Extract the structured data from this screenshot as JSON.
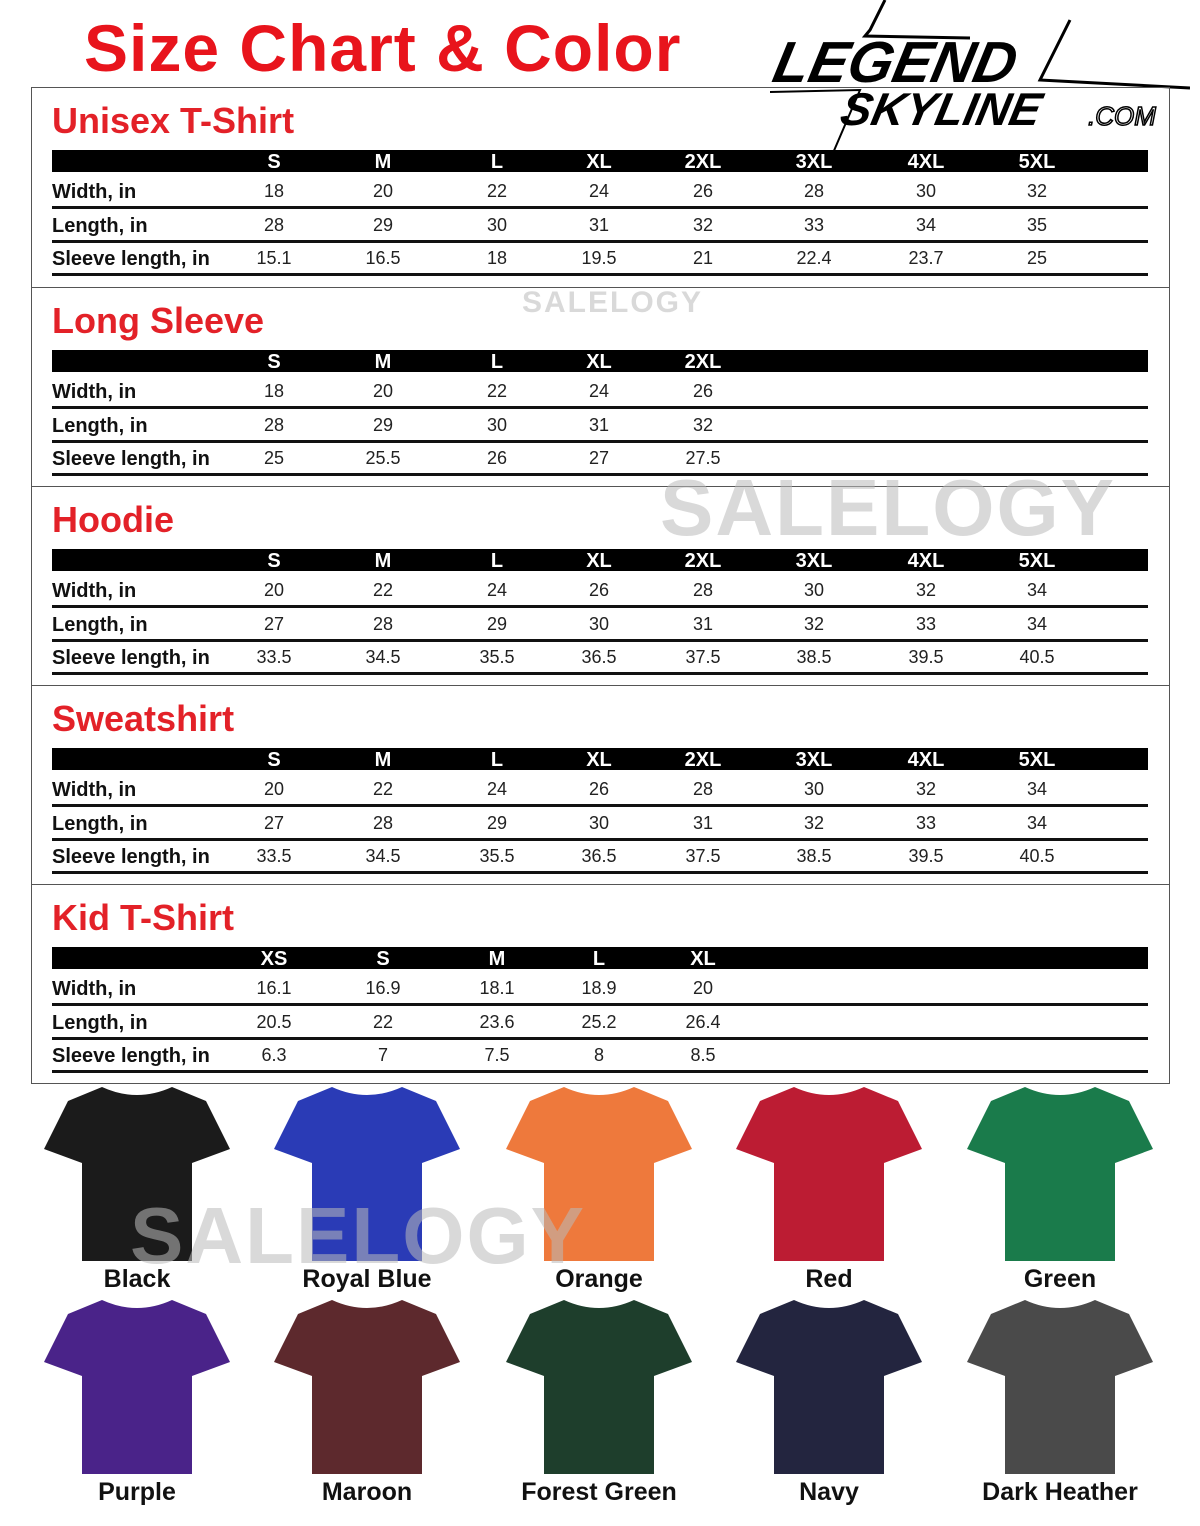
{
  "title": "Size Chart & Color",
  "logo": {
    "line1": "LEGEND",
    "line2": "SKYLINE",
    "suffix": ".COM"
  },
  "watermark": "SALELOGY",
  "row_labels": [
    "Width, in",
    "Length, in",
    "Sleeve length, in"
  ],
  "tables": [
    {
      "title": "Unisex T-Shirt",
      "sizes": [
        "S",
        "M",
        "L",
        "XL",
        "2XL",
        "3XL",
        "4XL",
        "5XL"
      ],
      "rows": [
        [
          "18",
          "20",
          "22",
          "24",
          "26",
          "28",
          "30",
          "32"
        ],
        [
          "28",
          "29",
          "30",
          "31",
          "32",
          "33",
          "34",
          "35"
        ],
        [
          "15.1",
          "16.5",
          "18",
          "19.5",
          "21",
          "22.4",
          "23.7",
          "25"
        ]
      ]
    },
    {
      "title": "Long Sleeve",
      "sizes": [
        "S",
        "M",
        "L",
        "XL",
        "2XL"
      ],
      "rows": [
        [
          "18",
          "20",
          "22",
          "24",
          "26"
        ],
        [
          "28",
          "29",
          "30",
          "31",
          "32"
        ],
        [
          "25",
          "25.5",
          "26",
          "27",
          "27.5"
        ]
      ]
    },
    {
      "title": "Hoodie",
      "sizes": [
        "S",
        "M",
        "L",
        "XL",
        "2XL",
        "3XL",
        "4XL",
        "5XL"
      ],
      "rows": [
        [
          "20",
          "22",
          "24",
          "26",
          "28",
          "30",
          "32",
          "34"
        ],
        [
          "27",
          "28",
          "29",
          "30",
          "31",
          "32",
          "33",
          "34"
        ],
        [
          "33.5",
          "34.5",
          "35.5",
          "36.5",
          "37.5",
          "38.5",
          "39.5",
          "40.5"
        ]
      ]
    },
    {
      "title": "Sweatshirt",
      "sizes": [
        "S",
        "M",
        "L",
        "XL",
        "2XL",
        "3XL",
        "4XL",
        "5XL"
      ],
      "rows": [
        [
          "20",
          "22",
          "24",
          "26",
          "28",
          "30",
          "32",
          "34"
        ],
        [
          "27",
          "28",
          "29",
          "30",
          "31",
          "32",
          "33",
          "34"
        ],
        [
          "33.5",
          "34.5",
          "35.5",
          "36.5",
          "37.5",
          "38.5",
          "39.5",
          "40.5"
        ]
      ]
    },
    {
      "title": "Kid T-Shirt",
      "sizes": [
        "XS",
        "S",
        "M",
        "L",
        "XL"
      ],
      "rows": [
        [
          "16.1",
          "16.9",
          "18.1",
          "18.9",
          "20"
        ],
        [
          "20.5",
          "22",
          "23.6",
          "25.2",
          "26.4"
        ],
        [
          "6.3",
          "7",
          "7.5",
          "8",
          "8.5"
        ]
      ]
    }
  ],
  "colors": [
    {
      "name": "Black",
      "hex": "#1b1b1b"
    },
    {
      "name": "Royal Blue",
      "hex": "#2a3bb6"
    },
    {
      "name": "Orange",
      "hex": "#ee793c"
    },
    {
      "name": "Red",
      "hex": "#bc1c33"
    },
    {
      "name": "Green",
      "hex": "#1a7b4b"
    },
    {
      "name": "Purple",
      "hex": "#4a2389"
    },
    {
      "name": "Maroon",
      "hex": "#5d292d"
    },
    {
      "name": "Forest Green",
      "hex": "#1e3e2c"
    },
    {
      "name": "Navy",
      "hex": "#23253f"
    },
    {
      "name": "Dark Heather",
      "hex": "#4a4a4a"
    }
  ]
}
